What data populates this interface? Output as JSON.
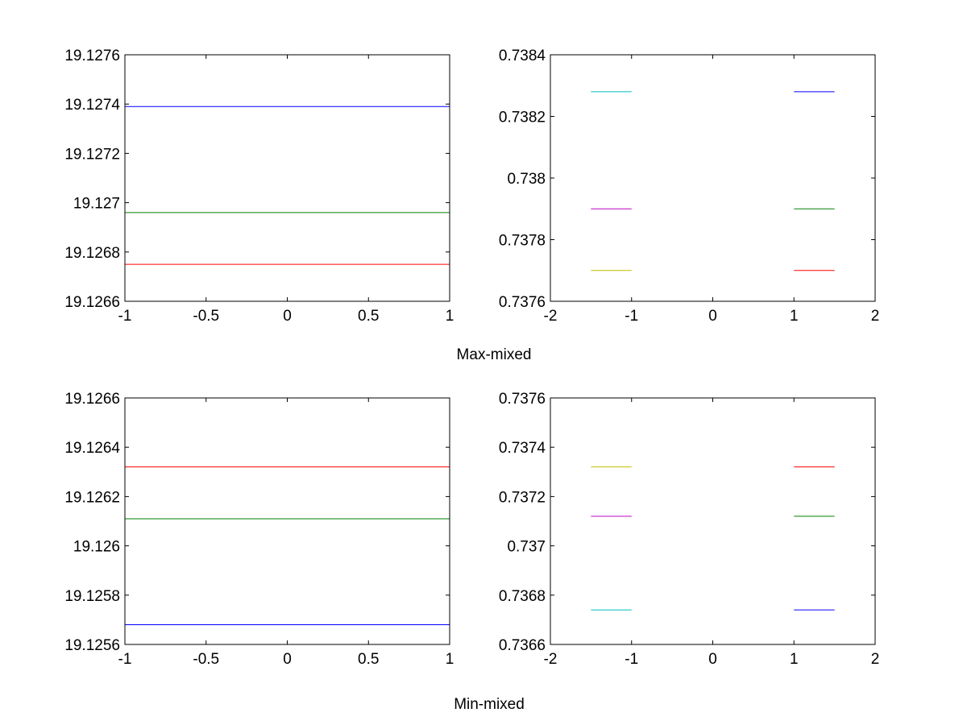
{
  "captions": {
    "top": "Max-mixed",
    "bottom": "Min-mixed"
  },
  "chart_data": [
    {
      "type": "line",
      "panel": "top-left",
      "xlim": [
        -1,
        1
      ],
      "ylim": [
        19.1266,
        19.1276
      ],
      "xticks": [
        "-1",
        "-0.5",
        "0",
        "0.5",
        "1"
      ],
      "yticks": [
        "19.1266",
        "19.1268",
        "19.127",
        "19.1272",
        "19.1274",
        "19.1276"
      ],
      "grid": false,
      "series": [
        {
          "color": "#0000ff",
          "x": [
            -1,
            1
          ],
          "y": [
            19.12739,
            19.12739
          ]
        },
        {
          "color": "#008000",
          "x": [
            -1,
            1
          ],
          "y": [
            19.12696,
            19.12696
          ]
        },
        {
          "color": "#ff0000",
          "x": [
            -1,
            1
          ],
          "y": [
            19.12675,
            19.12675
          ]
        }
      ]
    },
    {
      "type": "line",
      "panel": "top-right",
      "xlim": [
        -2,
        2
      ],
      "ylim": [
        0.7376,
        0.7384
      ],
      "xticks": [
        "-2",
        "-1",
        "0",
        "1",
        "2"
      ],
      "yticks": [
        "0.7376",
        "0.7378",
        "0.738",
        "0.7382",
        "0.7384"
      ],
      "grid": false,
      "series": [
        {
          "color": "#00bfbf",
          "x": [
            -1.5,
            -1
          ],
          "y": [
            0.73828,
            0.73828
          ]
        },
        {
          "color": "#bf00bf",
          "x": [
            -1.5,
            -1
          ],
          "y": [
            0.7379,
            0.7379
          ]
        },
        {
          "color": "#bfbf00",
          "x": [
            -1.5,
            -1
          ],
          "y": [
            0.7377,
            0.7377
          ]
        },
        {
          "color": "#0000ff",
          "x": [
            1,
            1.5
          ],
          "y": [
            0.73828,
            0.73828
          ]
        },
        {
          "color": "#008000",
          "x": [
            1,
            1.5
          ],
          "y": [
            0.7379,
            0.7379
          ]
        },
        {
          "color": "#ff0000",
          "x": [
            1,
            1.5
          ],
          "y": [
            0.7377,
            0.7377
          ]
        }
      ]
    },
    {
      "type": "line",
      "panel": "bottom-left",
      "xlim": [
        -1,
        1
      ],
      "ylim": [
        19.1256,
        19.1266
      ],
      "xticks": [
        "-1",
        "-0.5",
        "0",
        "0.5",
        "1"
      ],
      "yticks": [
        "19.1256",
        "19.1258",
        "19.126",
        "19.1262",
        "19.1264",
        "19.1266"
      ],
      "grid": false,
      "series": [
        {
          "color": "#ff0000",
          "x": [
            -1,
            1
          ],
          "y": [
            19.12632,
            19.12632
          ]
        },
        {
          "color": "#008000",
          "x": [
            -1,
            1
          ],
          "y": [
            19.12611,
            19.12611
          ]
        },
        {
          "color": "#0000ff",
          "x": [
            -1,
            1
          ],
          "y": [
            19.12568,
            19.12568
          ]
        }
      ]
    },
    {
      "type": "line",
      "panel": "bottom-right",
      "xlim": [
        -2,
        2
      ],
      "ylim": [
        0.7366,
        0.7376
      ],
      "xticks": [
        "-2",
        "-1",
        "0",
        "1",
        "2"
      ],
      "yticks": [
        "0.7366",
        "0.7368",
        "0.737",
        "0.7372",
        "0.7374",
        "0.7376"
      ],
      "grid": false,
      "series": [
        {
          "color": "#bfbf00",
          "x": [
            -1.5,
            -1
          ],
          "y": [
            0.73732,
            0.73732
          ]
        },
        {
          "color": "#bf00bf",
          "x": [
            -1.5,
            -1
          ],
          "y": [
            0.73712,
            0.73712
          ]
        },
        {
          "color": "#00bfbf",
          "x": [
            -1.5,
            -1
          ],
          "y": [
            0.73674,
            0.73674
          ]
        },
        {
          "color": "#ff0000",
          "x": [
            1,
            1.5
          ],
          "y": [
            0.73732,
            0.73732
          ]
        },
        {
          "color": "#008000",
          "x": [
            1,
            1.5
          ],
          "y": [
            0.73712,
            0.73712
          ]
        },
        {
          "color": "#0000ff",
          "x": [
            1,
            1.5
          ],
          "y": [
            0.73674,
            0.73674
          ]
        }
      ]
    }
  ]
}
